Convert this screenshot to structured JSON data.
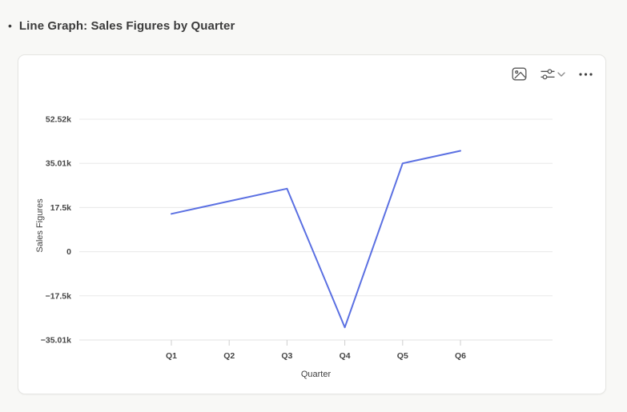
{
  "page": {
    "bullet": "•",
    "title": "Line Graph: Sales Figures by Quarter"
  },
  "toolbar": {
    "buttons": [
      {
        "name": "export-image",
        "icon": "image-icon"
      },
      {
        "name": "chart-settings",
        "icons": [
          "sliders-icon",
          "chevron-down-icon"
        ]
      },
      {
        "name": "more-options",
        "icon": "ellipsis-icon"
      }
    ]
  },
  "chart_data": {
    "type": "line",
    "title": "",
    "categories": [
      "Q1",
      "Q2",
      "Q3",
      "Q4",
      "Q5",
      "Q6"
    ],
    "values": [
      15000,
      20000,
      25000,
      -30000,
      35000,
      40000
    ],
    "xlabel": "Quarter",
    "ylabel": "Sales Figures",
    "ylim": [
      -35010,
      52515
    ],
    "y_tick_values": [
      52515,
      35010,
      17505,
      0,
      -17505,
      -35010
    ],
    "y_tick_labels": [
      "52.52k",
      "35.01k",
      "17.5k",
      "0",
      "−17.5k",
      "−35.01k"
    ],
    "grid": true,
    "legend": false,
    "line_color": "#5b70e2",
    "gridline_color": "#e8e8e8",
    "axisline_color": "#e3e3e3",
    "tickmark_color": "#cfcfcf"
  }
}
